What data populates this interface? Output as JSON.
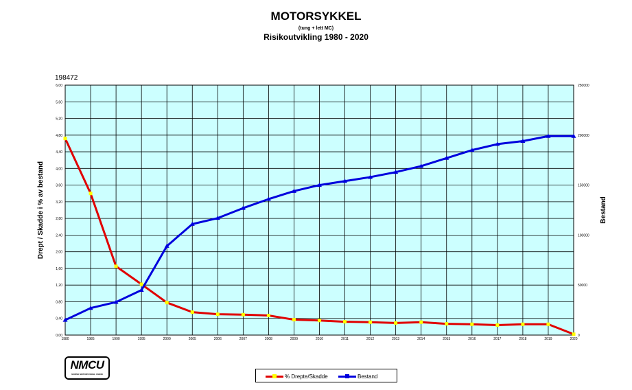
{
  "title": "MOTORSYKKEL",
  "subtitle": "(tung + lett MC)",
  "subtitle2": "Risikoutvikling 1980 - 2020",
  "note": "198472",
  "logo": {
    "text": "NMCU",
    "subtext": "NORSK MOTORSYKKEL UNION"
  },
  "chart_data": {
    "type": "line",
    "categories": [
      "1980",
      "1985",
      "1990",
      "1995",
      "2000",
      "2005",
      "2006",
      "2007",
      "2008",
      "2009",
      "2010",
      "2011",
      "2012",
      "2013",
      "2014",
      "2015",
      "2016",
      "2017",
      "2018",
      "2019",
      "2020"
    ],
    "ylabel": "Drept / Skadde i % av bestand",
    "y2label": "Bestand",
    "ylim": [
      0,
      6
    ],
    "y2lim": [
      0,
      250000
    ],
    "yticks": [
      "0,00",
      "0,40",
      "0,80",
      "1,20",
      "1,60",
      "2,00",
      "2,40",
      "2,80",
      "3,20",
      "3,60",
      "4,00",
      "4,40",
      "4,80",
      "5,20",
      "5,60",
      "6,00"
    ],
    "y2ticks": [
      "0",
      "50000",
      "100000",
      "150000",
      "200000",
      "250000"
    ],
    "grid": true,
    "legend_position": "bottom",
    "series": [
      {
        "name": "% Drepte/Skadde",
        "axis": "left",
        "color": "#e00000",
        "marker_color": "#ffff00",
        "values": [
          4.72,
          3.4,
          1.65,
          1.22,
          0.78,
          0.55,
          0.5,
          0.49,
          0.47,
          0.37,
          0.35,
          0.32,
          0.31,
          0.29,
          0.31,
          0.27,
          0.26,
          0.24,
          0.26,
          0.26,
          0.02
        ]
      },
      {
        "name": "Bestand",
        "axis": "right",
        "color": "#0000dd",
        "marker_color": "#0000dd",
        "values": [
          15000,
          27000,
          33000,
          45000,
          89000,
          111000,
          117000,
          127000,
          136000,
          144000,
          150000,
          154000,
          158000,
          163000,
          169000,
          177000,
          185000,
          191000,
          194000,
          199000,
          199000
        ]
      }
    ]
  }
}
